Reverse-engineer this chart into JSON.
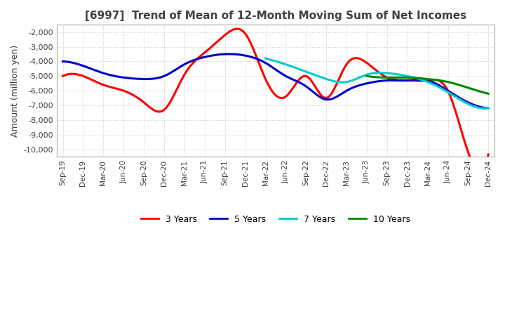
{
  "title": "[6997]  Trend of Mean of 12-Month Moving Sum of Net Incomes",
  "ylabel": "Amount (million yen)",
  "title_color": "#404040",
  "background_color": "#ffffff",
  "grid_color": "#c8c8c8",
  "x_labels": [
    "Sep-19",
    "Dec-19",
    "Mar-20",
    "Jun-20",
    "Sep-20",
    "Dec-20",
    "Mar-21",
    "Jun-21",
    "Sep-21",
    "Dec-21",
    "Mar-22",
    "Jun-22",
    "Sep-22",
    "Dec-22",
    "Mar-23",
    "Jun-23",
    "Sep-23",
    "Dec-23",
    "Mar-24",
    "Jun-24",
    "Sep-24",
    "Dec-24"
  ],
  "ylim": [
    -10500,
    -1500
  ],
  "yticks": [
    -10000,
    -9000,
    -8000,
    -7000,
    -6000,
    -5000,
    -4000,
    -3000,
    -2000
  ],
  "series": {
    "3 Years": {
      "color": "#ff0000",
      "values": [
        -5000,
        -5000,
        -5600,
        -6000,
        -6800,
        -7300,
        -4900,
        -3400,
        -2200,
        -2100,
        -5200,
        -6400,
        -5000,
        -6500,
        -4200,
        -4100,
        -5100,
        -5300,
        -5300,
        -6000,
        -10200,
        -10350
      ]
    },
    "5 Years": {
      "color": "#0000cc",
      "values": [
        -4000,
        -4300,
        -4800,
        -5100,
        -5200,
        -5000,
        -4200,
        -3700,
        -3500,
        -3600,
        -4100,
        -5000,
        -5700,
        -6600,
        -6000,
        -5500,
        -5300,
        -5300,
        -5300,
        -6000,
        -6800,
        -7200
      ]
    },
    "7 Years": {
      "color": "#00cccc",
      "values": [
        null,
        null,
        null,
        null,
        null,
        null,
        null,
        null,
        null,
        null,
        -3800,
        -4200,
        -4700,
        -5200,
        -5400,
        -4900,
        -4800,
        -5000,
        -5400,
        -6100,
        -6900,
        -7200
      ]
    },
    "10 Years": {
      "color": "#008800",
      "values": [
        null,
        null,
        null,
        null,
        null,
        null,
        null,
        null,
        null,
        null,
        null,
        null,
        null,
        null,
        null,
        -5000,
        -5100,
        -5100,
        -5200,
        -5400,
        -5800,
        -6200
      ]
    }
  },
  "legend_ncol": 4
}
